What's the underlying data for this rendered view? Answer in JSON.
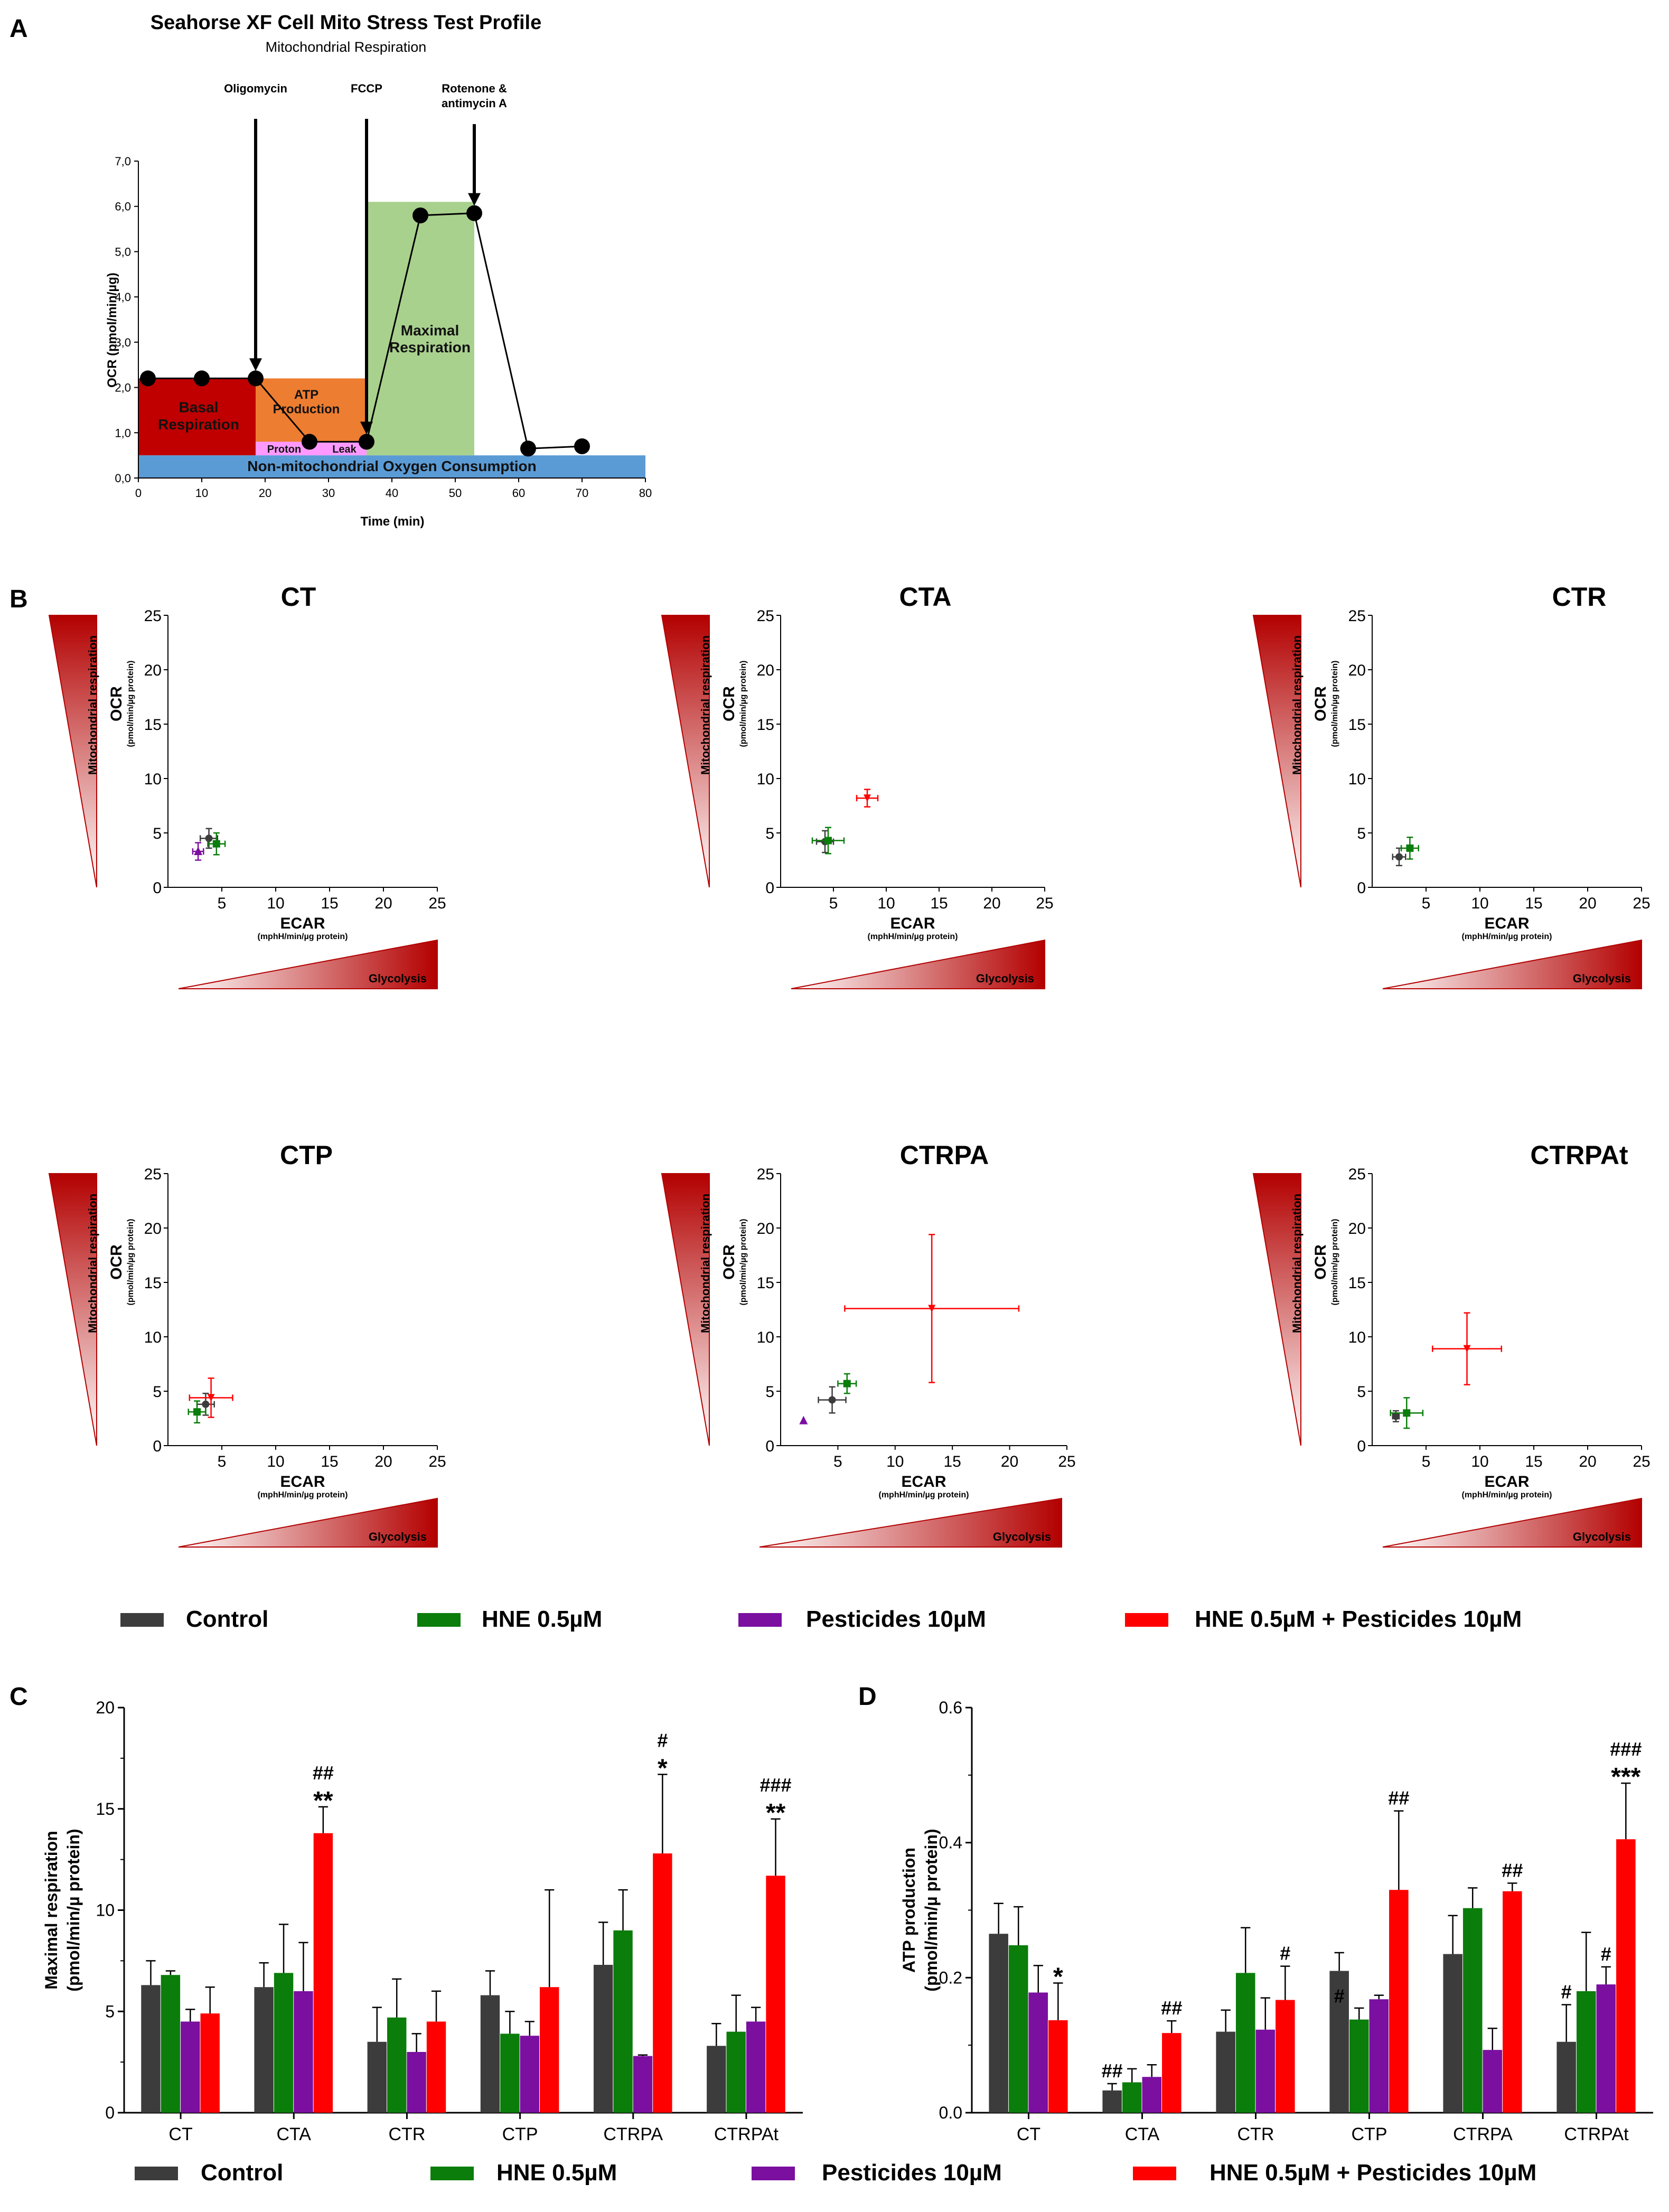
{
  "colors": {
    "control": "#3c3c3c",
    "hne": "#0a7d0a",
    "pest": "#7a0fa0",
    "combo": "#ff0000",
    "basal": "#c00000",
    "atp": "#ed7d31",
    "maximal": "#a9d18e",
    "proton": "#ff99ff",
    "nonmito": "#5b9bd5",
    "ramp": "#b30000"
  },
  "panel_labels": {
    "a": "A",
    "b": "B",
    "c": "C",
    "d": "D"
  },
  "legend": [
    "Control",
    "HNE 0.5µM",
    "Pesticides 10µM",
    "HNE 0.5µM + Pesticides 10µM"
  ],
  "chart_data": [
    {
      "id": "A",
      "type": "line",
      "title": "Seahorse XF Cell Mito Stress Test Profile",
      "subtitle": "Mitochondrial Respiration",
      "xlabel": "Time (min)",
      "ylabel": "OCR (pmol/min/µg)",
      "xlim": [
        0,
        80
      ],
      "ylim": [
        0,
        7
      ],
      "xticks": [
        "0",
        "10",
        "20",
        "30",
        "40",
        "50",
        "60",
        "70",
        "80"
      ],
      "yticks": [
        "0,0",
        "1,0",
        "2,0",
        "3,0",
        "4,0",
        "5,0",
        "6,0",
        "7,0"
      ],
      "x": [
        1.5,
        10,
        18.5,
        27,
        36,
        44.5,
        53,
        61.5,
        70
      ],
      "y": [
        2.2,
        2.2,
        2.2,
        0.8,
        0.8,
        5.8,
        5.85,
        0.65,
        0.7
      ],
      "injections": [
        {
          "label": "Oligomycin",
          "x": 18.5
        },
        {
          "label": "FCCP",
          "x": 36
        },
        {
          "label": "Rotenone &\nantimycin A",
          "x": 53
        }
      ],
      "regions": [
        {
          "label": "Basal\nRespiration",
          "x": [
            0,
            18.5
          ],
          "y": [
            0.5,
            2.2
          ],
          "color": "basal"
        },
        {
          "label": "ATP\nProduction",
          "x": [
            18.5,
            36
          ],
          "y": [
            0.8,
            2.2
          ],
          "color": "atp"
        },
        {
          "label": "Maximal\nRespiration",
          "x": [
            36,
            53
          ],
          "y": [
            0.5,
            6.1
          ],
          "color": "maximal"
        },
        {
          "label": "Proton",
          "x": [
            18.5,
            27
          ],
          "y": [
            0.5,
            0.8
          ],
          "color": "proton"
        },
        {
          "label": "Leak",
          "x": [
            27,
            36
          ],
          "y": [
            0.5,
            0.8
          ],
          "color": "proton"
        },
        {
          "label": "Non-mitochondrial Oxygen Consumption",
          "x": [
            0,
            80
          ],
          "y": [
            0,
            0.5
          ],
          "color": "nonmito"
        }
      ]
    },
    {
      "id": "B",
      "type": "scatter",
      "xlabel": "ECAR",
      "xunit": "(mphH/min/µg protein)",
      "ylabel": "OCR",
      "yunit": "(pmol/min/µg protein)",
      "ramp_y": "Mitochondrial respiration",
      "ramp_x": "Glycolysis",
      "xlim": [
        0,
        25
      ],
      "ylim": [
        0,
        25
      ],
      "xticks": [
        "5",
        "10",
        "15",
        "20",
        "25"
      ],
      "yticks": [
        "0",
        "5",
        "10",
        "15",
        "20",
        "25"
      ],
      "subplots": [
        {
          "title": "CT",
          "points": [
            {
              "series": "Control",
              "x": 3.8,
              "y": 4.5,
              "xerr": 0.8,
              "yerr": 0.9
            },
            {
              "series": "HNE 0.5µM",
              "x": 4.5,
              "y": 4.0,
              "xerr": 0.8,
              "yerr": 1.0
            },
            {
              "series": "Pesticides 10µM",
              "x": 2.8,
              "y": 3.3,
              "xerr": 0.5,
              "yerr": 0.8
            }
          ]
        },
        {
          "title": "CTA",
          "points": [
            {
              "series": "Control",
              "x": 4.2,
              "y": 4.2,
              "xerr": 0.8,
              "yerr": 1.0
            },
            {
              "series": "HNE 0.5µM",
              "x": 4.5,
              "y": 4.3,
              "xerr": 1.5,
              "yerr": 1.2
            },
            {
              "series": "HNE 0.5µM + Pesticides 10µM",
              "x": 8.2,
              "y": 8.2,
              "xerr": 1.0,
              "yerr": 0.8
            }
          ]
        },
        {
          "title": "CTR",
          "points": [
            {
              "series": "Control",
              "x": 2.5,
              "y": 2.8,
              "xerr": 0.6,
              "yerr": 0.8
            },
            {
              "series": "HNE 0.5µM",
              "x": 3.5,
              "y": 3.6,
              "xerr": 0.8,
              "yerr": 1.0
            }
          ]
        },
        {
          "title": "CTP",
          "points": [
            {
              "series": "Control",
              "x": 3.5,
              "y": 3.8,
              "xerr": 0.8,
              "yerr": 1.0
            },
            {
              "series": "HNE 0.5µM",
              "x": 2.7,
              "y": 3.1,
              "xerr": 0.8,
              "yerr": 1.0
            },
            {
              "series": "HNE 0.5µM + Pesticides 10µM",
              "x": 4.0,
              "y": 4.4,
              "xerr": 2.0,
              "yerr": 1.8
            }
          ]
        },
        {
          "title": "CTRPA",
          "points": [
            {
              "series": "Control",
              "x": 4.5,
              "y": 4.2,
              "xerr": 1.2,
              "yerr": 1.2
            },
            {
              "series": "HNE 0.5µM",
              "x": 5.8,
              "y": 5.7,
              "xerr": 0.8,
              "yerr": 0.9
            },
            {
              "series": "Pesticides 10µM",
              "x": 2.0,
              "y": 2.3,
              "xerr": 0,
              "yerr": 0
            },
            {
              "series": "HNE 0.5µM + Pesticides 10µM",
              "x": 13.2,
              "y": 12.6,
              "xerr": 7.6,
              "yerr": 6.8
            }
          ]
        },
        {
          "title": "CTRPAt",
          "points": [
            {
              "series": "Control",
              "x": 2.2,
              "y": 2.7,
              "xerr": 0.3,
              "yerr": 0.5
            },
            {
              "series": "HNE 0.5µM",
              "x": 3.2,
              "y": 3.0,
              "xerr": 1.5,
              "yerr": 1.4
            },
            {
              "series": "HNE 0.5µM + Pesticides 10µM",
              "x": 8.8,
              "y": 8.9,
              "xerr": 3.2,
              "yerr": 3.3
            }
          ]
        }
      ]
    },
    {
      "id": "C",
      "type": "bar",
      "ylabel": "Maximal respiration\n(pmol/min/µ protein)",
      "ylim": [
        0,
        20
      ],
      "yticks": [
        "0",
        "5",
        "10",
        "15",
        "20"
      ],
      "categories": [
        "CT",
        "CTA",
        "CTR",
        "CTP",
        "CTRPA",
        "CTRPAt"
      ],
      "series": [
        {
          "name": "Control",
          "values": [
            6.3,
            6.2,
            3.5,
            5.8,
            7.3,
            3.3
          ],
          "err": [
            1.2,
            1.2,
            1.7,
            1.2,
            2.1,
            1.1
          ]
        },
        {
          "name": "HNE 0.5µM",
          "values": [
            6.8,
            6.9,
            4.7,
            3.9,
            9.0,
            4.0
          ],
          "err": [
            0.2,
            2.4,
            1.9,
            1.1,
            2.0,
            1.8
          ]
        },
        {
          "name": "Pesticides 10µM",
          "values": [
            4.5,
            6.0,
            3.0,
            3.8,
            2.8,
            4.5
          ],
          "err": [
            0.6,
            2.4,
            0.9,
            0.7,
            0.05,
            0.7
          ]
        },
        {
          "name": "HNE 0.5µM + Pesticides 10µM",
          "values": [
            4.9,
            13.8,
            4.5,
            6.2,
            12.8,
            11.7
          ],
          "err": [
            1.3,
            1.3,
            1.5,
            4.8,
            3.9,
            2.8
          ]
        }
      ],
      "annotations": [
        {
          "category": "CTA",
          "series": "HNE 0.5µM + Pesticides 10µM",
          "lines": [
            "##",
            "**"
          ]
        },
        {
          "category": "CTRPA",
          "series": "HNE 0.5µM + Pesticides 10µM",
          "lines": [
            "#",
            "*"
          ]
        },
        {
          "category": "CTRPAt",
          "series": "HNE 0.5µM + Pesticides 10µM",
          "lines": [
            "###",
            "**"
          ]
        }
      ]
    },
    {
      "id": "D",
      "type": "bar",
      "ylabel": "ATP production\n(pmol/min/µ protein)",
      "ylim": [
        0,
        0.6
      ],
      "yticks": [
        "0.0",
        "0.2",
        "0.4",
        "0.6"
      ],
      "categories": [
        "CT",
        "CTA",
        "CTR",
        "CTP",
        "CTRPA",
        "CTRPAt"
      ],
      "series": [
        {
          "name": "Control",
          "values": [
            0.265,
            0.033,
            0.12,
            0.21,
            0.235,
            0.105
          ],
          "err": [
            0.045,
            0.01,
            0.032,
            0.027,
            0.057,
            0.055
          ]
        },
        {
          "name": "HNE 0.5µM",
          "values": [
            0.248,
            0.045,
            0.207,
            0.138,
            0.303,
            0.18
          ],
          "err": [
            0.057,
            0.02,
            0.067,
            0.017,
            0.03,
            0.087
          ]
        },
        {
          "name": "Pesticides 10µM",
          "values": [
            0.178,
            0.053,
            0.123,
            0.168,
            0.093,
            0.19
          ],
          "err": [
            0.04,
            0.018,
            0.047,
            0.006,
            0.032,
            0.026
          ]
        },
        {
          "name": "HNE 0.5µM + Pesticides 10µM",
          "values": [
            0.137,
            0.118,
            0.167,
            0.33,
            0.328,
            0.405
          ],
          "err": [
            0.055,
            0.018,
            0.05,
            0.117,
            0.012,
            0.083
          ]
        }
      ],
      "annotations": [
        {
          "category": "CT",
          "series": "HNE 0.5µM + Pesticides 10µM",
          "lines": [
            "*"
          ]
        },
        {
          "category": "CTA",
          "series": "Control",
          "lines": [
            "##"
          ]
        },
        {
          "category": "CTA",
          "series": "HNE 0.5µM + Pesticides 10µM",
          "lines": [
            "##"
          ]
        },
        {
          "category": "CTR",
          "series": "HNE 0.5µM + Pesticides 10µM",
          "lines": [
            "#"
          ]
        },
        {
          "category": "CTP",
          "series": "Control",
          "lines": [
            "#"
          ],
          "inside": true
        },
        {
          "category": "CTP",
          "series": "HNE 0.5µM + Pesticides 10µM",
          "lines": [
            "##"
          ]
        },
        {
          "category": "CTRPA",
          "series": "HNE 0.5µM + Pesticides 10µM",
          "lines": [
            "##"
          ]
        },
        {
          "category": "CTRPAt",
          "series": "Control",
          "lines": [
            "#"
          ]
        },
        {
          "category": "CTRPAt",
          "series": "Pesticides 10µM",
          "lines": [
            "#"
          ]
        },
        {
          "category": "CTRPAt",
          "series": "HNE 0.5µM + Pesticides 10µM",
          "lines": [
            "###",
            "***"
          ]
        }
      ]
    }
  ]
}
